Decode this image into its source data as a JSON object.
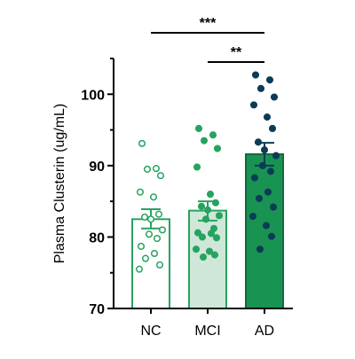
{
  "chart_data": {
    "type": "bar",
    "ylabel": "Plasma Clusterin (ug/mL)",
    "ylim": [
      70,
      105
    ],
    "yticks": [
      70,
      80,
      90,
      100
    ],
    "grid": false,
    "categories": [
      "NC",
      "MCI",
      "AD"
    ],
    "bars": [
      {
        "category": "NC",
        "mean": 82.5,
        "sem_low": 81.2,
        "sem_high": 83.9,
        "fill": "#ffffff",
        "stroke": "#27a35f",
        "points": [
          93.1,
          89.6,
          89.5,
          88.6,
          86.3,
          85.6,
          83.2,
          82.8,
          82.5,
          81.0,
          80.4,
          79.8,
          78.7,
          77.7,
          77.0,
          76.1,
          75.5
        ],
        "point_fill": "#ffffff",
        "point_stroke": "#27a35f"
      },
      {
        "category": "MCI",
        "mean": 83.7,
        "sem_low": 82.3,
        "sem_high": 85.0,
        "fill": "#cfe7d9",
        "stroke": "#27a35f",
        "points": [
          95.2,
          94.3,
          93.5,
          92.4,
          89.8,
          86.0,
          84.8,
          84.3,
          83.8,
          83.0,
          82.5,
          81.2,
          80.6,
          80.5,
          80.0,
          79.9,
          78.3,
          78.0,
          77.5,
          77.2
        ],
        "point_fill": "#27a35f",
        "point_stroke": "#27a35f"
      },
      {
        "category": "AD",
        "mean": 91.6,
        "sem_low": 90.0,
        "sem_high": 93.2,
        "fill": "#199352",
        "stroke": "#0f6b3b",
        "points": [
          102.7,
          102.0,
          100.8,
          99.6,
          98.5,
          96.8,
          95.2,
          93.3,
          92.2,
          91.4,
          90.0,
          89.2,
          88.3,
          86.3,
          85.4,
          84.2,
          82.9,
          81.6,
          80.1,
          78.3
        ],
        "point_fill": "#0b3c56",
        "point_stroke": "#0b3c56"
      }
    ],
    "significance": [
      {
        "from": "NC",
        "to": "AD",
        "label": "***"
      },
      {
        "from": "MCI",
        "to": "AD",
        "label": "**"
      }
    ]
  }
}
